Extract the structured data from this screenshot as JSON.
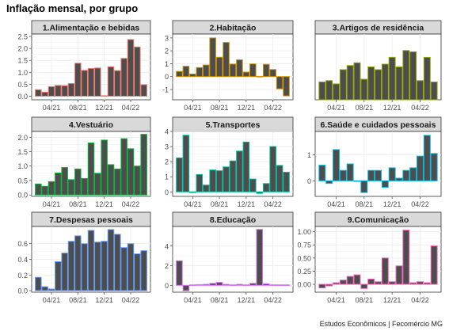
{
  "title": "Inflação mensal, por grupo",
  "caption": "Estudos Econômicos | Fecomércio MG",
  "chart_data": [
    {
      "type": "bar",
      "title": "1.Alimentação e bebidas",
      "xticks": [
        "04/21",
        "08/21",
        "12/21",
        "04/22"
      ],
      "ylim": [
        -0.15,
        2.6
      ],
      "yticks": [
        0.0,
        0.5,
        1.0,
        1.5,
        2.0,
        2.5
      ],
      "ytick_labels": [
        "0.0",
        "0.5",
        "1.0",
        "1.5",
        "2.0",
        "2.5"
      ],
      "values": [
        0.27,
        0.17,
        0.4,
        0.45,
        0.44,
        0.53,
        1.38,
        1.08,
        1.16,
        1.18,
        0.02,
        1.23,
        1.07,
        1.58,
        2.37,
        2.06,
        0.48
      ],
      "color": "#F8766D"
    },
    {
      "type": "bar",
      "title": "2.Habitação",
      "xticks": [
        "04/21",
        "08/21",
        "12/21",
        "04/22"
      ],
      "ylim": [
        -1.8,
        3.3
      ],
      "yticks": [
        -1,
        0,
        1,
        2,
        3
      ],
      "ytick_labels": [
        "-1",
        "0",
        "1",
        "2",
        "3"
      ],
      "values": [
        0.4,
        0.8,
        0.2,
        0.7,
        0.9,
        3.0,
        1.5,
        2.65,
        0.97,
        1.3,
        0.35,
        0.98,
        0.02,
        0.95,
        0.55,
        -0.95,
        -1.5
      ],
      "color": "#D39200"
    },
    {
      "type": "bar",
      "title": "3.Artigos de residência",
      "xticks": [
        "04/21",
        "08/21",
        "12/21",
        "04/22"
      ],
      "ylim": [
        0,
        2.4
      ],
      "yticks": [],
      "ytick_labels": [],
      "values": [
        0.65,
        0.7,
        0.58,
        1.1,
        1.25,
        1.35,
        0.75,
        1.2,
        1.1,
        1.3,
        1.55,
        1.2,
        1.8,
        1.75,
        0.7,
        1.55,
        0.65
      ],
      "color": "#93AA00"
    },
    {
      "type": "bar",
      "title": "4.Vestuário",
      "xticks": [
        "04/21",
        "08/21",
        "12/21",
        "04/22"
      ],
      "ylim": [
        -0.05,
        2.2
      ],
      "yticks": [
        0.0,
        0.5,
        1.0,
        1.5,
        2.0
      ],
      "ytick_labels": [
        "0.0",
        "0.5",
        "1.0",
        "1.5",
        "2.0"
      ],
      "values": [
        0.38,
        0.3,
        0.46,
        0.76,
        0.95,
        0.53,
        0.9,
        0.57,
        1.8,
        0.75,
        1.9,
        1.05,
        0.9,
        1.95,
        1.6,
        1.0,
        2.1
      ],
      "color": "#00BA38"
    },
    {
      "type": "bar",
      "title": "5.Transportes",
      "xticks": [
        "04/21",
        "08/21",
        "12/21",
        "04/22"
      ],
      "ylim": [
        -0.3,
        4.0
      ],
      "yticks": [
        0,
        1,
        2,
        3,
        4
      ],
      "ytick_labels": [
        "0",
        "1",
        "2",
        "3",
        "4"
      ],
      "values": [
        2.25,
        3.75,
        -0.05,
        1.15,
        0.45,
        1.45,
        1.4,
        1.65,
        2.05,
        2.7,
        3.3,
        0.85,
        -0.1,
        0.55,
        3.0,
        1.75,
        1.3
      ],
      "color": "#00C19F"
    },
    {
      "type": "bar",
      "title": "6.Saúde e cuidados pessoais",
      "xticks": [
        "04/21",
        "08/21",
        "12/21",
        "04/22"
      ],
      "ylim": [
        -0.6,
        1.9
      ],
      "yticks": [
        0,
        1
      ],
      "ytick_labels": [
        "0",
        "1"
      ],
      "values": [
        0.6,
        -0.1,
        1.2,
        0.4,
        0.65,
        0.0,
        -0.45,
        0.4,
        0.4,
        -0.25,
        0.5,
        0.1,
        0.4,
        0.5,
        0.95,
        1.75,
        1.05
      ],
      "color": "#00B9E3"
    },
    {
      "type": "bar",
      "title": "7.Despesas pessoais",
      "xticks": [
        "04/21",
        "08/21",
        "12/21",
        "04/22"
      ],
      "ylim": [
        -0.02,
        0.82
      ],
      "yticks": [
        0.0,
        0.2,
        0.4,
        0.6
      ],
      "ytick_labels": [
        "0.0",
        "0.2",
        "0.4",
        "0.6"
      ],
      "values": [
        0.17,
        0.05,
        0.02,
        0.37,
        0.48,
        0.63,
        0.7,
        0.6,
        0.77,
        0.62,
        0.63,
        0.78,
        0.72,
        0.55,
        0.6,
        0.47,
        0.51
      ],
      "color": "#619CFF"
    },
    {
      "type": "bar",
      "title": "8.Educação",
      "xticks": [
        "04/21",
        "08/21",
        "12/21",
        "04/22"
      ],
      "ylim": [
        -0.7,
        6.0
      ],
      "yticks": [
        0,
        2,
        4
      ],
      "ytick_labels": [
        "0",
        "2",
        "4"
      ],
      "values": [
        2.5,
        -0.55,
        0.05,
        0.08,
        0.1,
        0.2,
        0.3,
        0.1,
        0.05,
        0.1,
        0.05,
        0.2,
        5.7,
        0.15,
        0.05,
        0.05,
        0.05
      ],
      "color": "#DB72FB"
    },
    {
      "type": "bar",
      "title": "9.Comunicação",
      "xticks": [
        "04/21",
        "08/21",
        "12/21",
        "04/22"
      ],
      "ylim": [
        -0.15,
        1.1
      ],
      "yticks": [
        0.0,
        0.25,
        0.5,
        0.75,
        1.0
      ],
      "ytick_labels": [
        "0.00",
        "0.25",
        "0.50",
        "0.75",
        "1.00"
      ],
      "values": [
        -0.07,
        -0.03,
        0.03,
        0.08,
        0.15,
        0.18,
        -0.08,
        0.1,
        0.05,
        0.5,
        0.05,
        0.35,
        1.03,
        0.03,
        0.05,
        0.03,
        0.73
      ],
      "color": "#FF61C3"
    }
  ]
}
